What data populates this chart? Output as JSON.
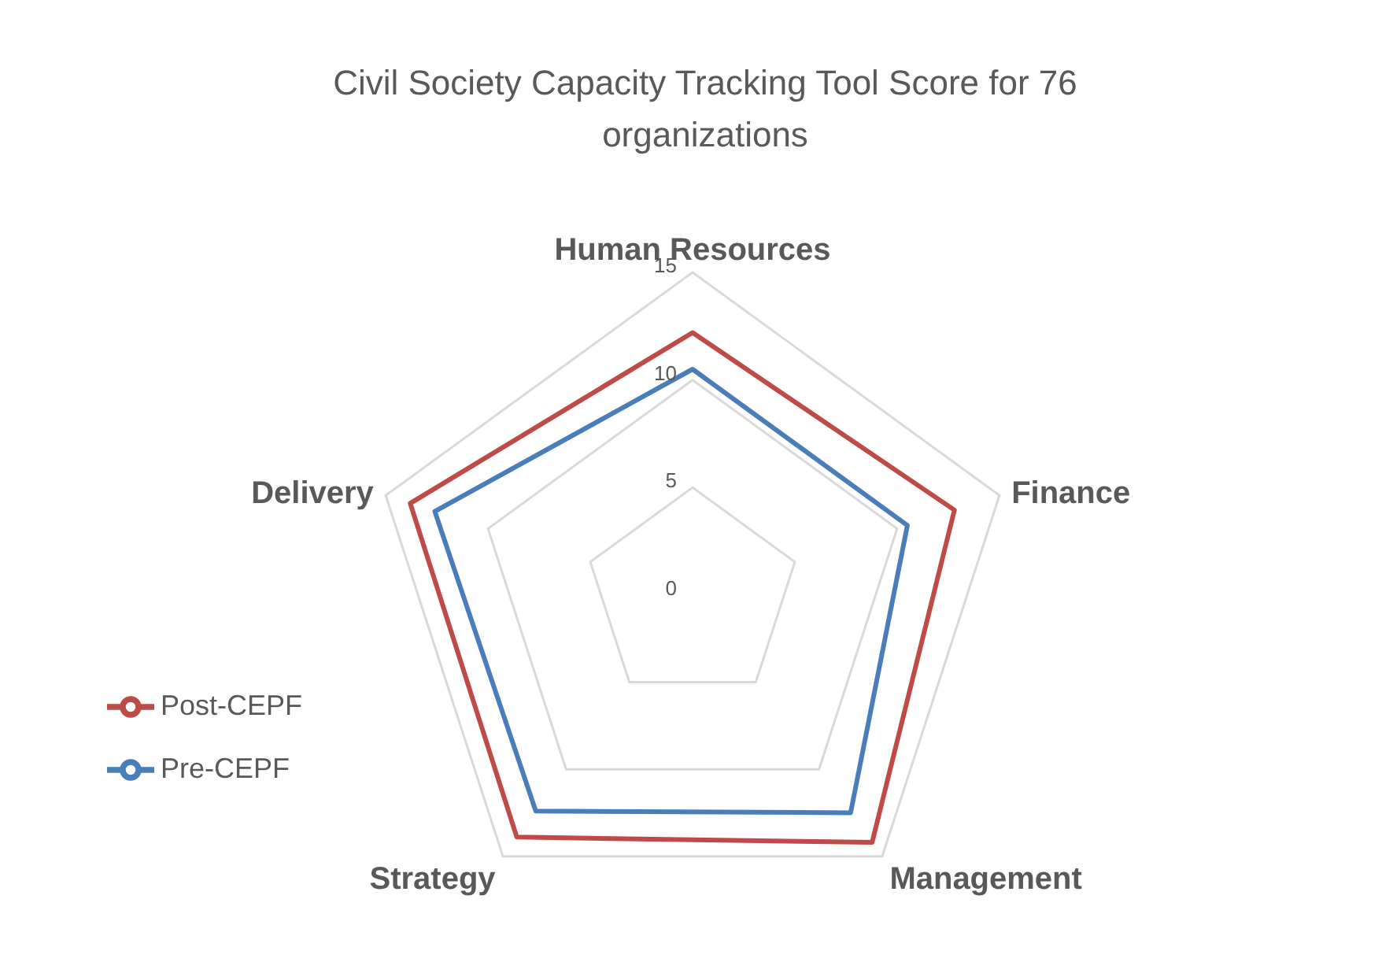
{
  "chart_data": {
    "type": "radar",
    "title": "Civil Society Capacity Tracking Tool Score for 76 organizations",
    "categories": [
      "Human Resources",
      "Finance",
      "Management",
      "Strategy",
      "Delivery"
    ],
    "series": [
      {
        "name": "Pre-CEPF",
        "color": "#4a7ebb",
        "values": [
          10.5,
          10.5,
          12.5,
          12.4,
          12.6
        ]
      },
      {
        "name": "Post-CEPF",
        "color": "#be4b48",
        "values": [
          12.2,
          12.8,
          14.2,
          13.9,
          13.8
        ]
      }
    ],
    "ylim": [
      0,
      15
    ],
    "yticks": [
      0,
      5,
      10,
      15
    ],
    "grid": true,
    "legend": "left",
    "marker": "none"
  }
}
